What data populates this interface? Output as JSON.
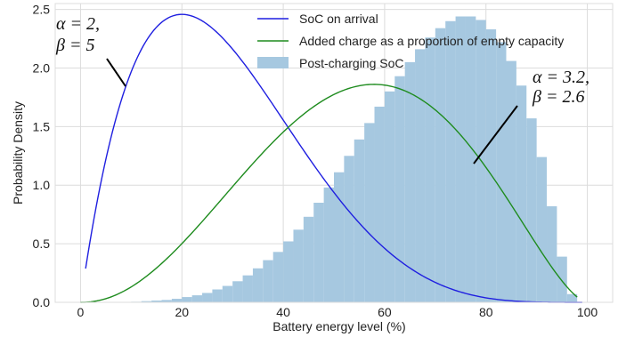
{
  "chart_data": {
    "type": "bar",
    "xlabel": "Battery energy level (%)",
    "ylabel": "Probability Density",
    "xlim": [
      -5,
      105
    ],
    "ylim": [
      0,
      2.55
    ],
    "x_ticks": [
      "0",
      "20",
      "40",
      "60",
      "80",
      "100"
    ],
    "y_ticks": [
      "0.0",
      "0.5",
      "1.0",
      "1.5",
      "2.0",
      "2.5"
    ],
    "grid": true,
    "legend_position": "top-right",
    "colors": {
      "arrival": "#1f1fe0",
      "added": "#1f8c1f",
      "histogram": "#a6c8e0",
      "grid": "#dcdcdc",
      "annotation_line": "#000000"
    },
    "series": [
      {
        "name": "SoC on arrival",
        "type": "line",
        "distribution": "beta",
        "alpha": 2,
        "beta": 5,
        "x_range": [
          1,
          99
        ]
      },
      {
        "name": "Added charge as a proportion of empty capacity",
        "type": "line",
        "distribution": "beta",
        "alpha": 3.2,
        "beta": 2.6,
        "x_range": [
          0,
          98
        ]
      },
      {
        "name": "Post-charging SoC",
        "type": "histogram",
        "bin_width": 2,
        "bins_start": [
          0,
          2,
          4,
          6,
          8,
          10,
          12,
          14,
          16,
          18,
          20,
          22,
          24,
          26,
          28,
          30,
          32,
          34,
          36,
          38,
          40,
          42,
          44,
          46,
          48,
          50,
          52,
          54,
          56,
          58,
          60,
          62,
          64,
          66,
          68,
          70,
          72,
          74,
          76,
          78,
          80,
          82,
          84,
          86,
          88,
          90,
          92,
          94,
          96,
          98
        ],
        "values": [
          0.0,
          0.0,
          0.0,
          0.0,
          0.0,
          0.005,
          0.01,
          0.015,
          0.02,
          0.03,
          0.045,
          0.06,
          0.08,
          0.11,
          0.14,
          0.18,
          0.23,
          0.29,
          0.36,
          0.43,
          0.52,
          0.62,
          0.73,
          0.85,
          0.98,
          1.11,
          1.25,
          1.39,
          1.53,
          1.67,
          1.8,
          1.93,
          2.05,
          2.16,
          2.26,
          2.34,
          2.4,
          2.44,
          2.44,
          2.41,
          2.33,
          2.22,
          2.06,
          1.85,
          1.57,
          1.24,
          0.82,
          0.39,
          0.07,
          0.0
        ]
      }
    ],
    "annotations": [
      {
        "lines": [
          "α = 2,",
          "β = 5"
        ]
      },
      {
        "lines": [
          "α = 3.2,",
          "β = 2.6"
        ]
      }
    ]
  }
}
